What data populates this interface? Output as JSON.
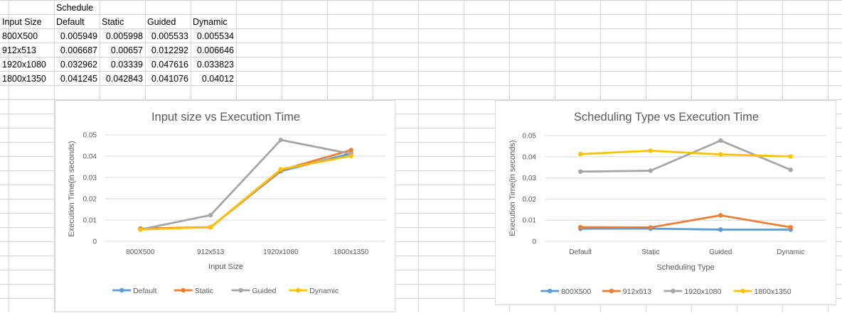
{
  "table": {
    "schedule_label": "Schedule",
    "headers": [
      "Input Size",
      "Default",
      "Static",
      "Guided",
      "Dynamic"
    ],
    "rows": [
      [
        "800X500",
        "0.005949",
        "0.005998",
        "0.005533",
        "0.005534"
      ],
      [
        "912x513",
        "0.006687",
        "0.00657",
        "0.012292",
        "0.006646"
      ],
      [
        "1920x1080",
        "0.032962",
        "0.03339",
        "0.047616",
        "0.033823"
      ],
      [
        "1800x1350",
        "0.041245",
        "0.042843",
        "0.041076",
        "0.04012"
      ]
    ]
  },
  "chart_data": [
    {
      "type": "line",
      "title": "Input size vs Execution Time",
      "xlabel": "Input Size",
      "ylabel": "Execution Time(in seconds)",
      "categories": [
        "800X500",
        "912x513",
        "1920x1080",
        "1800x1350"
      ],
      "ylim": [
        0,
        0.05
      ],
      "yticks": [
        "0",
        "0.01",
        "0.02",
        "0.03",
        "0.04",
        "0.05"
      ],
      "grid": true,
      "legend": "bottom",
      "series": [
        {
          "name": "Default",
          "color": "#5b9bd5",
          "values": [
            0.005949,
            0.006687,
            0.032962,
            0.041245
          ]
        },
        {
          "name": "Static",
          "color": "#ed7d31",
          "values": [
            0.005998,
            0.00657,
            0.03339,
            0.042843
          ]
        },
        {
          "name": "Guided",
          "color": "#a5a5a5",
          "values": [
            0.005533,
            0.012292,
            0.047616,
            0.041076
          ]
        },
        {
          "name": "Dynamic",
          "color": "#ffc000",
          "values": [
            0.005534,
            0.006646,
            0.033823,
            0.04012
          ]
        }
      ]
    },
    {
      "type": "line",
      "title": "Scheduling Type vs Execution Time",
      "xlabel": "Scheduling Type",
      "ylabel": "Execution Time(in seconds)",
      "categories": [
        "Default",
        "Static",
        "Guided",
        "Dynamic"
      ],
      "ylim": [
        0,
        0.05
      ],
      "yticks": [
        "0",
        "0.01",
        "0.02",
        "0.03",
        "0.04",
        "0.05"
      ],
      "grid": true,
      "legend": "bottom",
      "series": [
        {
          "name": "800X500",
          "color": "#5b9bd5",
          "values": [
            0.005949,
            0.005998,
            0.005533,
            0.005534
          ]
        },
        {
          "name": "912x513",
          "color": "#ed7d31",
          "values": [
            0.006687,
            0.00657,
            0.012292,
            0.006646
          ]
        },
        {
          "name": "1920x1080",
          "color": "#a5a5a5",
          "values": [
            0.032962,
            0.03339,
            0.047616,
            0.033823
          ]
        },
        {
          "name": "1800x1350",
          "color": "#ffc000",
          "values": [
            0.041245,
            0.042843,
            0.041076,
            0.04012
          ]
        }
      ]
    }
  ]
}
